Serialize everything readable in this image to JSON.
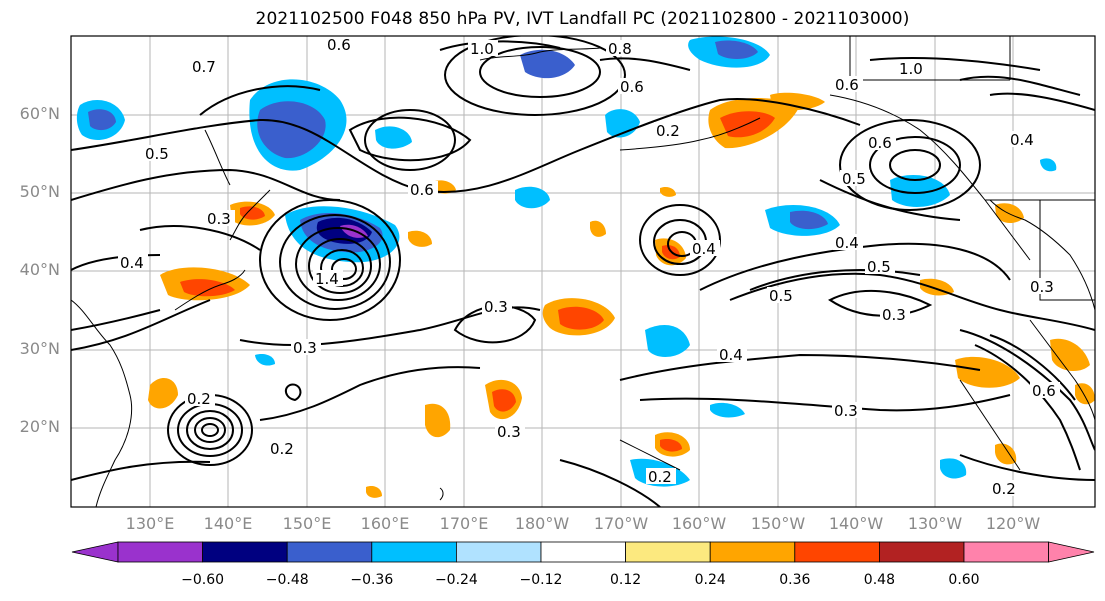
{
  "title": "2021102500 F048 850 hPa PV, IVT Landfall PC (2021102800 - 2021103000)",
  "lat_ticks": [
    "60°N",
    "50°N",
    "40°N",
    "30°N",
    "20°N"
  ],
  "lon_ticks": [
    "130°E",
    "140°E",
    "150°E",
    "160°E",
    "170°E",
    "180°W",
    "170°W",
    "160°W",
    "150°W",
    "140°W",
    "130°W",
    "120°W"
  ],
  "colorbar": {
    "colors": [
      "#9a32cd",
      "#000080",
      "#3a5fcd",
      "#00bfff",
      "#b0e2ff",
      "#ffffff",
      "#fce97f",
      "#ffa500",
      "#ff4500",
      "#b22222",
      "#ff82ab"
    ],
    "ticks": [
      "−0.60",
      "−0.48",
      "−0.36",
      "−0.24",
      "−0.12",
      "0.12",
      "0.24",
      "0.36",
      "0.48",
      "0.60"
    ]
  },
  "contour_labels": [
    "0.6",
    "0.7",
    "1.0",
    "0.8",
    "0.5",
    "0.6",
    "0.2",
    "0.3",
    "0.4",
    "1.4",
    "0.3",
    "0.3",
    "0.2",
    "0.4",
    "0.5",
    "0.3",
    "0.4",
    "0.3",
    "0.2",
    "0.3",
    "0.6",
    "0.6",
    "0.5",
    "0.6",
    "1.0",
    "0.4",
    "0.3",
    "0.6",
    "0.2",
    "0.2",
    "0.5",
    "0.4"
  ],
  "legend": {
    "field": "850 hPa PV",
    "overlay": "IVT Landfall PC"
  }
}
